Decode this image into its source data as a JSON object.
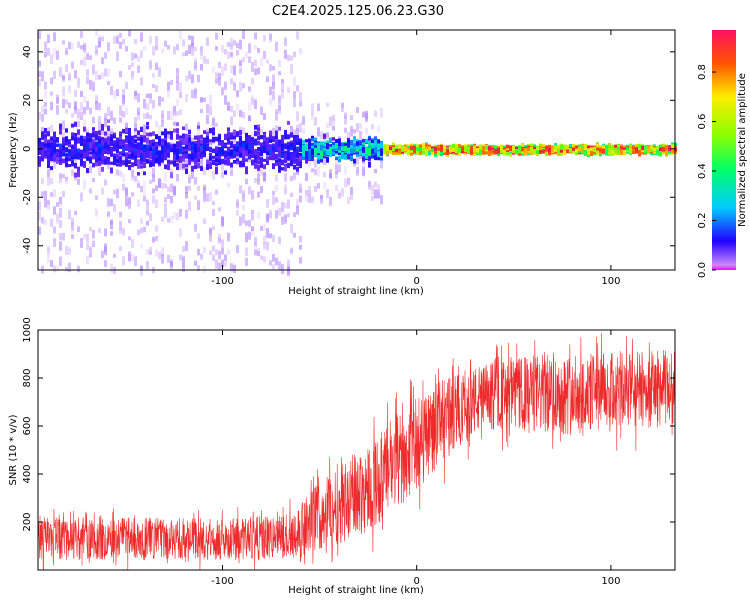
{
  "title": "C2E4.2025.125.06.23.G30",
  "colors": {
    "snr_line": "#ee2a2a",
    "frame": "#000000"
  },
  "chart_data": [
    {
      "id": "spectrogram",
      "type": "heatmap",
      "xlabel": "Height of straight line (km)",
      "ylabel": "Frequency (Hz)",
      "xlim": [
        -195,
        133
      ],
      "ylim": [
        -50,
        49
      ],
      "x_ticks": [
        -100,
        0,
        100
      ],
      "y_ticks": [
        -40,
        -20,
        0,
        20,
        40
      ],
      "colorbar": {
        "label": "Normalized spectral amplitude",
        "range": [
          0,
          0.97
        ],
        "ticks": [
          0.0,
          0.2,
          0.4,
          0.6,
          0.8
        ],
        "colormap": [
          "#ff00ff",
          "#ff0000",
          "#ffff00",
          "#00ff00",
          "#00ffff",
          "#0000ff",
          "#ff00ff"
        ]
      },
      "regions": [
        {
          "x_from": -195,
          "x_to": -60,
          "freq_spread_hz": 49,
          "core_band_hz": [
            -8,
            8
          ],
          "core_amplitude": 0.2,
          "background_amplitude": 0.02
        },
        {
          "x_from": -60,
          "x_to": -18,
          "freq_spread_hz": 20,
          "core_band_hz": [
            -4,
            4
          ],
          "core_amplitude": 0.35,
          "background_amplitude": 0.01
        },
        {
          "x_from": -18,
          "x_to": 133,
          "freq_spread_hz": 3,
          "core_band_hz": [
            -1.5,
            1.5
          ],
          "core_amplitude": 0.9,
          "background_amplitude": 0.0
        }
      ]
    },
    {
      "id": "snr",
      "type": "line",
      "xlabel": "Height of straight line (km)",
      "ylabel": "SNR (10 * v/v)",
      "xlim": [
        -195,
        133
      ],
      "ylim": [
        0,
        1000
      ],
      "x_ticks": [
        -100,
        0,
        100
      ],
      "y_ticks": [
        200,
        400,
        600,
        800,
        1000
      ],
      "envelope": {
        "x": [
          -195,
          -150,
          -100,
          -70,
          -60,
          -50,
          -40,
          -30,
          -20,
          -10,
          0,
          10,
          20,
          30,
          40,
          50,
          60,
          80,
          100,
          133
        ],
        "low": [
          40,
          40,
          40,
          40,
          50,
          80,
          110,
          140,
          180,
          250,
          330,
          420,
          500,
          560,
          580,
          580,
          570,
          560,
          580,
          600
        ],
        "high": [
          220,
          220,
          215,
          230,
          270,
          380,
          450,
          500,
          560,
          650,
          720,
          780,
          820,
          850,
          870,
          880,
          900,
          900,
          910,
          920
        ]
      }
    }
  ]
}
